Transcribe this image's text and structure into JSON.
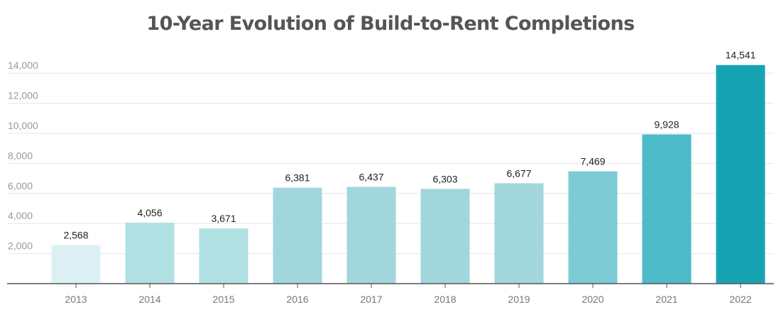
{
  "chart_data": {
    "type": "bar",
    "title": "10-Year Evolution of Build-to-Rent Completions",
    "xlabel": "",
    "ylabel": "",
    "categories": [
      "2013",
      "2014",
      "2015",
      "2016",
      "2017",
      "2018",
      "2019",
      "2020",
      "2021",
      "2022"
    ],
    "values": [
      2568,
      4056,
      3671,
      6381,
      6437,
      6303,
      6677,
      7469,
      9928,
      14541
    ],
    "data_labels": [
      "2,568",
      "4,056",
      "3,671",
      "6,381",
      "6,437",
      "6,303",
      "6,677",
      "7,469",
      "9,928",
      "14,541"
    ],
    "bar_colors": [
      "#dcf0f4",
      "#b1e0e3",
      "#b1e0e3",
      "#a2d6dd",
      "#a2d6dd",
      "#a2d6dd",
      "#a2d6dd",
      "#7ccbd4",
      "#4dbbc8",
      "#16a4b3"
    ],
    "yticks": [
      2000,
      4000,
      6000,
      8000,
      10000,
      12000,
      14000
    ],
    "ytick_labels": [
      "2,000",
      "4,000",
      "6,000",
      "8,000",
      "10,000",
      "12,000",
      "14,000"
    ],
    "ylim": [
      0,
      14541
    ],
    "grid": true,
    "legend": "none"
  }
}
